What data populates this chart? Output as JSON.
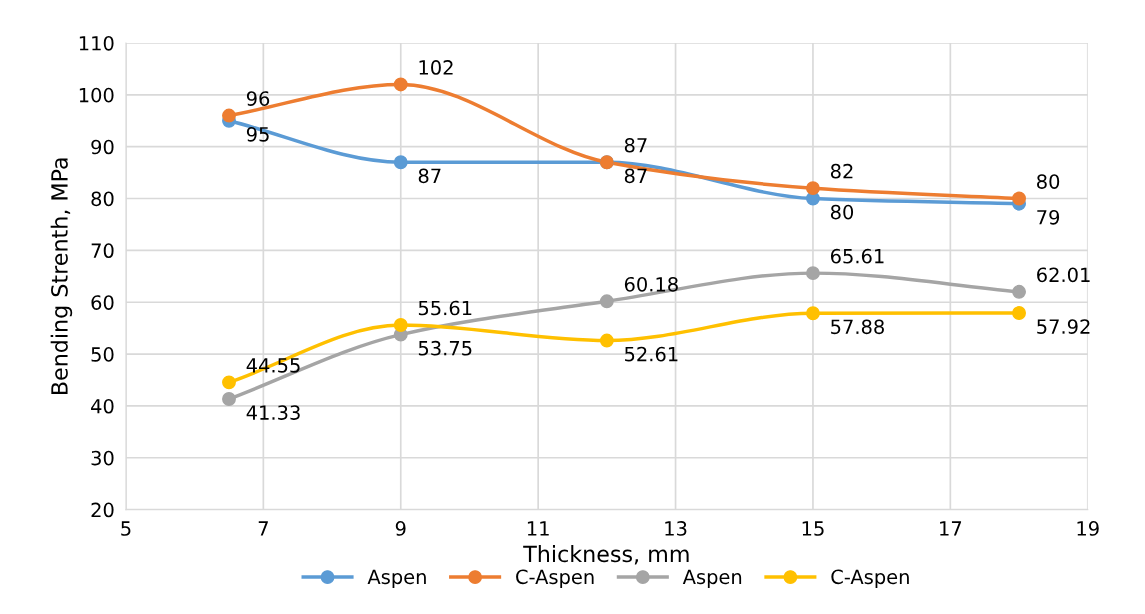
{
  "chart_data": {
    "type": "line",
    "xlabel": "Thickness, mm",
    "ylabel": "Bending Strenth, MPa",
    "x": [
      6.5,
      9,
      12,
      15,
      18
    ],
    "series": [
      {
        "name": "Aspen",
        "color": "#5b9bd5",
        "values": [
          95,
          87,
          87,
          80,
          79
        ]
      },
      {
        "name": "C-Aspen",
        "color": "#ed7d31",
        "values": [
          96,
          102,
          87,
          82,
          80
        ]
      },
      {
        "name": "Aspen",
        "color": "#a5a5a5",
        "values": [
          41.33,
          53.75,
          60.18,
          65.61,
          62.01
        ]
      },
      {
        "name": "C-Aspen",
        "color": "#ffc000",
        "values": [
          44.55,
          55.61,
          52.61,
          57.88,
          57.92
        ]
      }
    ],
    "xlim": [
      5,
      19
    ],
    "xticks": [
      5,
      7,
      9,
      11,
      13,
      15,
      17,
      19
    ],
    "ylim": [
      20,
      110
    ],
    "yticks": [
      20,
      30,
      40,
      50,
      60,
      70,
      80,
      90,
      100,
      110
    ],
    "grid": true,
    "legend": "bottom",
    "marker": "circle",
    "line_style": "solid",
    "data_labels": true
  }
}
